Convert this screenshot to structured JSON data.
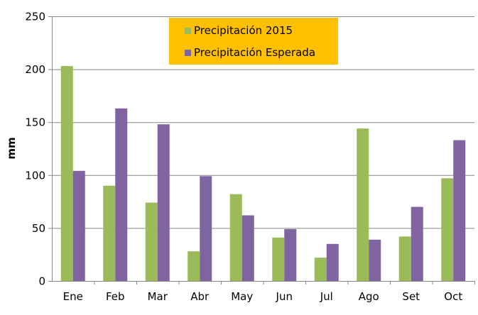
{
  "chart_data": {
    "type": "bar",
    "title": "",
    "xlabel": "",
    "ylabel": "mm",
    "ylim": [
      0,
      250
    ],
    "yticks": [
      0,
      50,
      100,
      150,
      200,
      250
    ],
    "grid": true,
    "legend_placement": "top-center",
    "categories": [
      "Ene",
      "Feb",
      "Mar",
      "Abr",
      "May",
      "Jun",
      "Jul",
      "Ago",
      "Set",
      "Oct"
    ],
    "series": [
      {
        "name": "Precipitación 2015",
        "color": "#9BBB59",
        "values": [
          203,
          90,
          74,
          28,
          82,
          41,
          22,
          144,
          42,
          97
        ]
      },
      {
        "name": "Precipitación Esperada",
        "color": "#8064A2",
        "values": [
          104,
          163,
          148,
          99,
          62,
          49,
          35,
          39,
          70,
          133
        ]
      }
    ],
    "legend_background": "#FFC000"
  }
}
